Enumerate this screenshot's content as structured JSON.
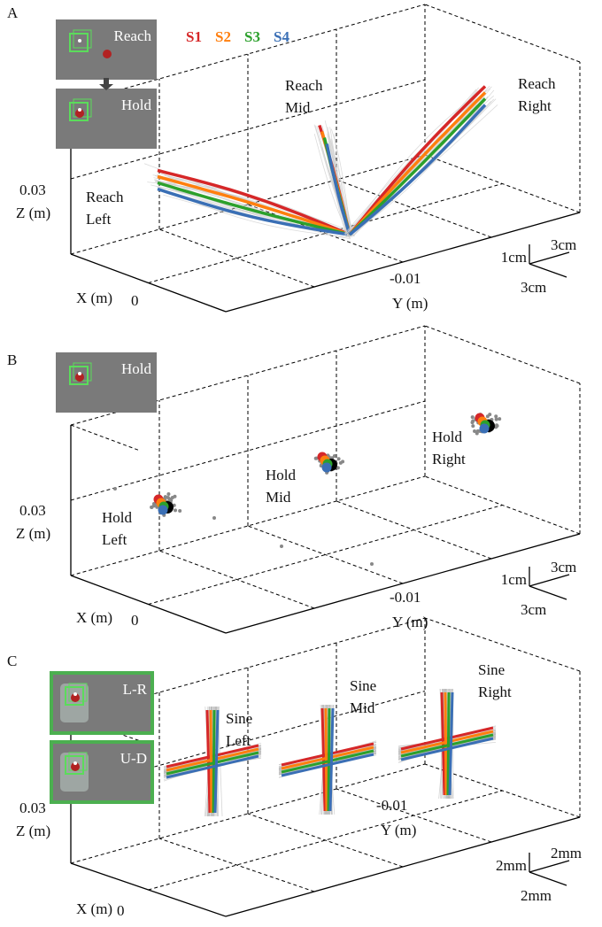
{
  "panels": [
    {
      "label": "A",
      "insets": [
        "Reach",
        "Hold"
      ],
      "legend": [
        {
          "name": "S1",
          "color": "#d62728"
        },
        {
          "name": "S2",
          "color": "#ff7f0e"
        },
        {
          "name": "S3",
          "color": "#2ca02c"
        },
        {
          "name": "S4",
          "color": "#3a6fb5"
        }
      ],
      "annotations": [
        [
          "Reach",
          "Left"
        ],
        [
          "Reach",
          "Mid"
        ],
        [
          "Reach",
          "Right"
        ]
      ],
      "axes": {
        "z_tick": "0.03",
        "z_label": "Z (m)",
        "x_label": "X (m)",
        "x_tick": "0",
        "y_tick": "-0.01",
        "y_label": "Y (m)"
      },
      "scale": [
        "1cm",
        "3cm",
        "3cm"
      ]
    },
    {
      "label": "B",
      "insets": [
        "Hold"
      ],
      "annotations": [
        [
          "Hold",
          "Left"
        ],
        [
          "Hold",
          "Mid"
        ],
        [
          "Hold",
          "Right"
        ]
      ],
      "axes": {
        "z_tick": "0.03",
        "z_label": "Z (m)",
        "x_label": "X (m)",
        "x_tick": "0",
        "y_tick": "-0.01",
        "y_label": "Y (m)"
      },
      "scale": [
        "1cm",
        "3cm",
        "3cm"
      ]
    },
    {
      "label": "C",
      "insets": [
        "L-R",
        "U-D"
      ],
      "annotations": [
        [
          "Sine",
          "Left"
        ],
        [
          "Sine",
          "Mid"
        ],
        [
          "Sine",
          "Right"
        ]
      ],
      "axes": {
        "z_tick": "0.03",
        "z_label": "Z (m)",
        "x_label": "X (m)",
        "x_tick": "0",
        "y_tick": "-0.01",
        "y_label": "Y (m)"
      },
      "scale": [
        "2mm",
        "2mm",
        "2mm"
      ]
    }
  ]
}
